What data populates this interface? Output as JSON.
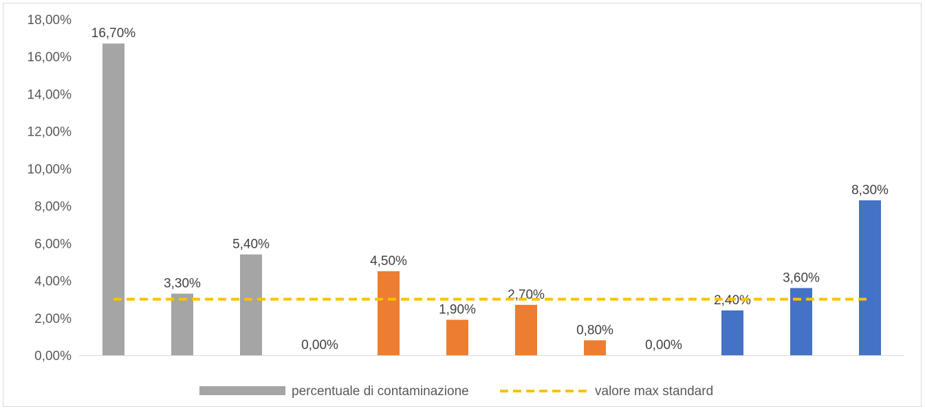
{
  "chart_data": {
    "type": "bar",
    "title": "",
    "xlabel": "",
    "ylabel": "",
    "ylim": [
      0,
      18
    ],
    "y_tick_values": [
      0,
      2,
      4,
      6,
      8,
      10,
      12,
      14,
      16,
      18
    ],
    "y_tick_labels": [
      "0,00%",
      "2,00%",
      "4,00%",
      "6,00%",
      "8,00%",
      "10,00%",
      "12,00%",
      "14,00%",
      "16,00%",
      "18,00%"
    ],
    "categories": [
      "",
      "",
      "",
      "",
      "",
      "",
      "",
      "",
      "",
      "",
      "",
      ""
    ],
    "values": [
      16.7,
      3.3,
      5.4,
      0.0,
      4.5,
      1.9,
      2.7,
      0.8,
      0.0,
      2.4,
      3.6,
      8.3
    ],
    "value_labels": [
      "16,70%",
      "3,30%",
      "5,40%",
      "0,00%",
      "4,50%",
      "1,90%",
      "2,70%",
      "0,80%",
      "0,00%",
      "2,40%",
      "3,60%",
      "8,30%"
    ],
    "bar_colors": [
      "#a5a5a5",
      "#a5a5a5",
      "#a5a5a5",
      "#a5a5a5",
      "#ed7d31",
      "#ed7d31",
      "#ed7d31",
      "#ed7d31",
      "#4472c4",
      "#4472c4",
      "#4472c4",
      "#4472c4"
    ],
    "series": [
      {
        "name": "percentuale di contaminazione",
        "color": "#a5a5a5",
        "style": "bar"
      },
      {
        "name": "valore max standard",
        "color": "#ffc000",
        "style": "dashed-line",
        "values": [
          3,
          3,
          3,
          3,
          3,
          3,
          3,
          3,
          3,
          3,
          3,
          3
        ]
      }
    ],
    "grid": false,
    "legend_position": "bottom"
  }
}
